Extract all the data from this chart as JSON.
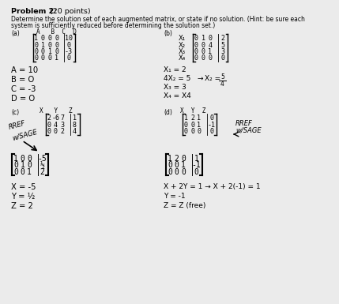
{
  "bg_color": "#ebebeb",
  "title": "Problem 2:",
  "title_pts": " (20 points)",
  "sub1": "Determine the solution set of each augmented matrix, or state if no solution. (Hint: be sure each",
  "sub2": "system is sufficiently reduced before determining the solution set.)",
  "label_a": "(a)",
  "label_b": "(b)",
  "label_c": "(c)",
  "label_d": "(d)",
  "abcd_header": "A   B  C  D",
  "xyz_c_header": "X   Y   Z",
  "xyz_d_header": "X  Y  Z",
  "mat_a": [
    [
      "1",
      "0",
      "0",
      "0",
      "10"
    ],
    [
      "0",
      "1",
      "0",
      "0",
      "0"
    ],
    [
      "0",
      "0",
      "1",
      "0",
      "-3"
    ],
    [
      "0",
      "0",
      "0",
      "1",
      "0"
    ]
  ],
  "mat_b_rows": [
    "X₁",
    "X₂",
    "X₃",
    "X₄"
  ],
  "mat_b": [
    [
      "0",
      "1",
      "0",
      "2"
    ],
    [
      "0",
      "0",
      "4",
      "5"
    ],
    [
      "0",
      "0",
      "1",
      "3"
    ],
    [
      "0",
      "0",
      "0",
      "0"
    ]
  ],
  "sol_a": [
    "A = 10",
    "B = O",
    "C = -3",
    "D = O"
  ],
  "sol_b_line1": "X₁ = 2",
  "sol_b_line2": "4X₂ = 5",
  "sol_b_arr": "→",
  "sol_b_Xe": "X₂ =",
  "sol_b_frac": "5/4",
  "sol_b_line3": "X₃ = 3",
  "sol_b_line4": "X₄ = X4",
  "rref_label": "RREF",
  "sage_label": "w/SAGE",
  "mat_c": [
    [
      "2",
      "-6",
      "7",
      "1"
    ],
    [
      "0",
      "4",
      "3",
      "8"
    ],
    [
      "0",
      "0",
      "2",
      "4"
    ]
  ],
  "mat_cr": [
    [
      "1",
      "0",
      "0",
      "-5"
    ],
    [
      "0",
      "1",
      "0",
      "½"
    ],
    [
      "0",
      "0",
      "1",
      "2"
    ]
  ],
  "sol_c": [
    "X = -5",
    "Y = ½",
    "Z = 2"
  ],
  "mat_d": [
    [
      "1",
      "2",
      "1",
      "0"
    ],
    [
      "0",
      "0",
      "1",
      "-1"
    ],
    [
      "0",
      "0",
      "0",
      "0"
    ]
  ],
  "mat_dr": [
    [
      "1",
      "2",
      "0",
      "1"
    ],
    [
      "0",
      "0",
      "1",
      "-1"
    ],
    [
      "0",
      "0",
      "0",
      "0"
    ]
  ],
  "sol_d_line1": "X + 2Y = 1",
  "sol_d_arr": "→",
  "sol_d_sub": "X + 2(-1) = 1",
  "sol_d_line2": "Y = -1",
  "sol_d_line3": "Z = Z (free)"
}
